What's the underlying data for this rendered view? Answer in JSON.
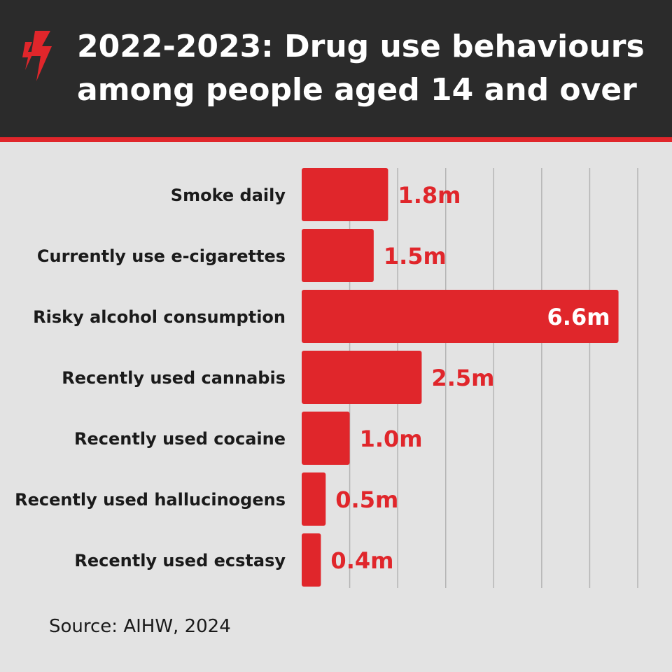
{
  "header": {
    "title_line1": "2022-2023: Drug use behaviours",
    "title_line2": "among people aged 14 and over",
    "logo_icon": "sbs-logo-icon",
    "background_color": "#2b2b2b",
    "accent_color": "#e0262b"
  },
  "chart_data": {
    "type": "bar",
    "orientation": "horizontal",
    "categories": [
      "Smoke daily",
      "Currently use e-cigarettes",
      "Risky alcohol consumption",
      "Recently used cannabis",
      "Recently used cocaine",
      "Recently used hallucinogens",
      "Recently used ecstasy"
    ],
    "values": [
      1.8,
      1.5,
      6.6,
      2.5,
      1.0,
      0.5,
      0.4
    ],
    "value_labels": [
      "1.8m",
      "1.5m",
      "6.6m",
      "2.5m",
      "1.0m",
      "0.5m",
      "0.4m"
    ],
    "xlim": [
      0,
      7
    ],
    "grid": true,
    "bar_color": "#e0262b",
    "label_color": "#e0262b",
    "inside_label_color": "#ffffff"
  },
  "footer": {
    "source": "Source: AIHW, 2024"
  }
}
